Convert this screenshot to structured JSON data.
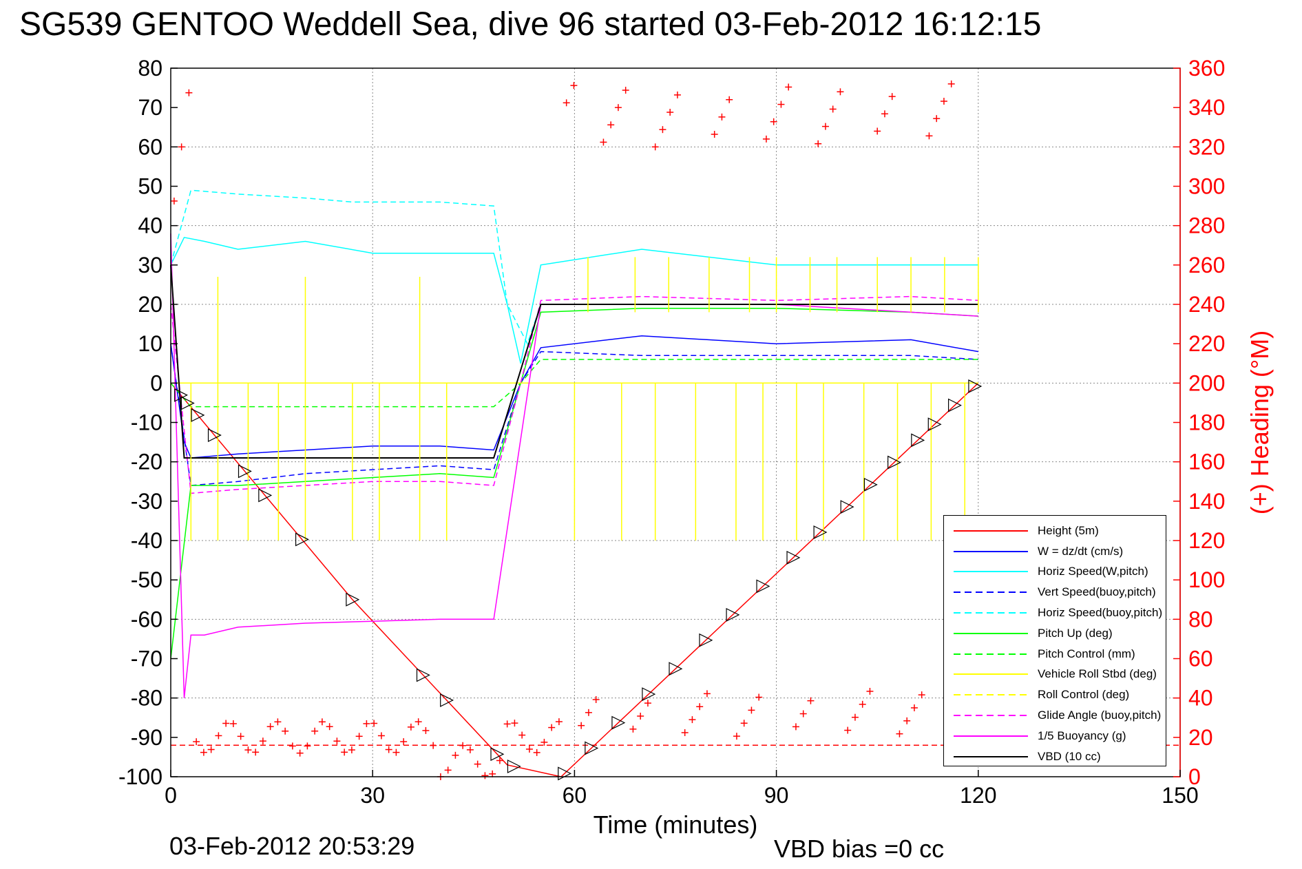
{
  "title": "SG539 GENTOO Weddell Sea, dive 96 started 03-Feb-2012 16:12:15",
  "footer": {
    "date": "03-Feb-2012 20:53:29",
    "vbd_bias": "VBD bias =0 cc"
  },
  "chart_data": {
    "type": "line",
    "xlabel": "Time (minutes)",
    "ylabel_left": "",
    "ylabel_right": "(+) Heading (°M)",
    "xlim": [
      0,
      150
    ],
    "ylim_left": [
      -100,
      80
    ],
    "ylim_right": [
      0,
      360
    ],
    "x_ticks": [
      "0",
      "30",
      "60",
      "90",
      "120",
      "150"
    ],
    "y_ticks_left": [
      "80",
      "70",
      "60",
      "50",
      "40",
      "30",
      "20",
      "10",
      "0",
      "-10",
      "-20",
      "-30",
      "-40",
      "-50",
      "-60",
      "-70",
      "-80",
      "-90",
      "-100"
    ],
    "y_ticks_right": [
      "360",
      "340",
      "320",
      "300",
      "280",
      "260",
      "240",
      "220",
      "200",
      "180",
      "160",
      "140",
      "120",
      "100",
      "80",
      "60",
      "40",
      "20",
      "0"
    ],
    "grid": true,
    "legend_position": "bottom-right",
    "colors": {
      "red": "#ff0000",
      "blue": "#0000ff",
      "cyan": "#00ffff",
      "green": "#00ff00",
      "yellow": "#ffff00",
      "magenta": "#ff00ff",
      "black": "#000000"
    },
    "series": [
      {
        "name": "Height (5m)",
        "color": "#ff0000",
        "style": "solid",
        "x": [
          0,
          27,
          50,
          58,
          120
        ],
        "y": [
          0,
          -55,
          -97,
          -100,
          0
        ]
      },
      {
        "name": "W = dz/dt (cm/s)",
        "color": "#0000ff",
        "style": "solid",
        "x": [
          0,
          2,
          3,
          10,
          20,
          30,
          40,
          48,
          52,
          55,
          70,
          90,
          110,
          120
        ],
        "y": [
          10,
          -15,
          -19,
          -18,
          -17,
          -16,
          -16,
          -17,
          0,
          9,
          12,
          10,
          11,
          8
        ]
      },
      {
        "name": "Horiz Speed(W,pitch)",
        "color": "#00ffff",
        "style": "solid",
        "x": [
          0,
          2,
          5,
          10,
          20,
          30,
          40,
          48,
          50,
          52,
          55,
          70,
          90,
          110,
          120
        ],
        "y": [
          30,
          37,
          36,
          34,
          36,
          33,
          33,
          33,
          20,
          5,
          30,
          34,
          30,
          30,
          30
        ]
      },
      {
        "name": "Vert Speed(buoy,pitch)",
        "color": "#0000ff",
        "style": "dashed",
        "x": [
          0,
          3,
          10,
          20,
          30,
          40,
          48,
          52,
          55,
          70,
          90,
          110,
          120
        ],
        "y": [
          10,
          -26,
          -25,
          -23,
          -22,
          -21,
          -22,
          0,
          8,
          7,
          7,
          7,
          6
        ]
      },
      {
        "name": "Horiz Speed(buoy,pitch)",
        "color": "#00ffff",
        "style": "dashed",
        "x": [
          0,
          3,
          10,
          20,
          27,
          40,
          48,
          50,
          53,
          55,
          120
        ],
        "y": [
          30,
          49,
          48,
          47,
          46,
          46,
          45,
          20,
          10,
          20,
          20
        ]
      },
      {
        "name": "Pitch Up (deg)",
        "color": "#00ff00",
        "style": "solid",
        "x": [
          0,
          3,
          10,
          20,
          30,
          40,
          48,
          52,
          55,
          70,
          90,
          110,
          120
        ],
        "y": [
          -70,
          -26,
          -26,
          -25,
          -24,
          -23,
          -24,
          0,
          18,
          19,
          19,
          18,
          17
        ]
      },
      {
        "name": "Pitch Control (mm)",
        "color": "#00ff00",
        "style": "dashed",
        "x": [
          0,
          3,
          48,
          52,
          55,
          120
        ],
        "y": [
          0,
          -6,
          -6,
          0,
          6,
          6
        ]
      },
      {
        "name": "Vehicle Roll Stbd (deg)",
        "color": "#ffff00",
        "style": "solid",
        "x": [
          0,
          5,
          30,
          50,
          55,
          90,
          120
        ],
        "y": [
          0,
          0,
          0,
          0,
          0,
          0,
          0
        ]
      },
      {
        "name": "Roll Control (deg)",
        "color": "#ffff00",
        "style": "dashed",
        "x": [
          0,
          120
        ],
        "y": [
          0,
          0
        ]
      },
      {
        "name": "Glide Angle (buoy,pitch)",
        "color": "#ff00ff",
        "style": "dashed",
        "x": [
          0,
          3,
          10,
          20,
          30,
          40,
          48,
          52,
          55,
          70,
          90,
          110,
          120
        ],
        "y": [
          20,
          -28,
          -27,
          -26,
          -25,
          -25,
          -26,
          0,
          21,
          22,
          21,
          22,
          21
        ]
      },
      {
        "name": "1/5 Buoyancy (g)",
        "color": "#ff00ff",
        "style": "solid",
        "x": [
          0,
          2,
          3,
          5,
          10,
          20,
          30,
          40,
          48,
          55,
          70,
          90,
          110,
          120
        ],
        "y": [
          38,
          -80,
          -64,
          -64,
          -62,
          -61,
          -60.5,
          -60,
          -60,
          20,
          20,
          20,
          18,
          17
        ]
      },
      {
        "name": "VBD (10 cc)",
        "color": "#000000",
        "style": "solid",
        "x": [
          0,
          2,
          48,
          55,
          120
        ],
        "y": [
          30,
          -19,
          -19,
          20,
          20
        ]
      }
    ]
  }
}
